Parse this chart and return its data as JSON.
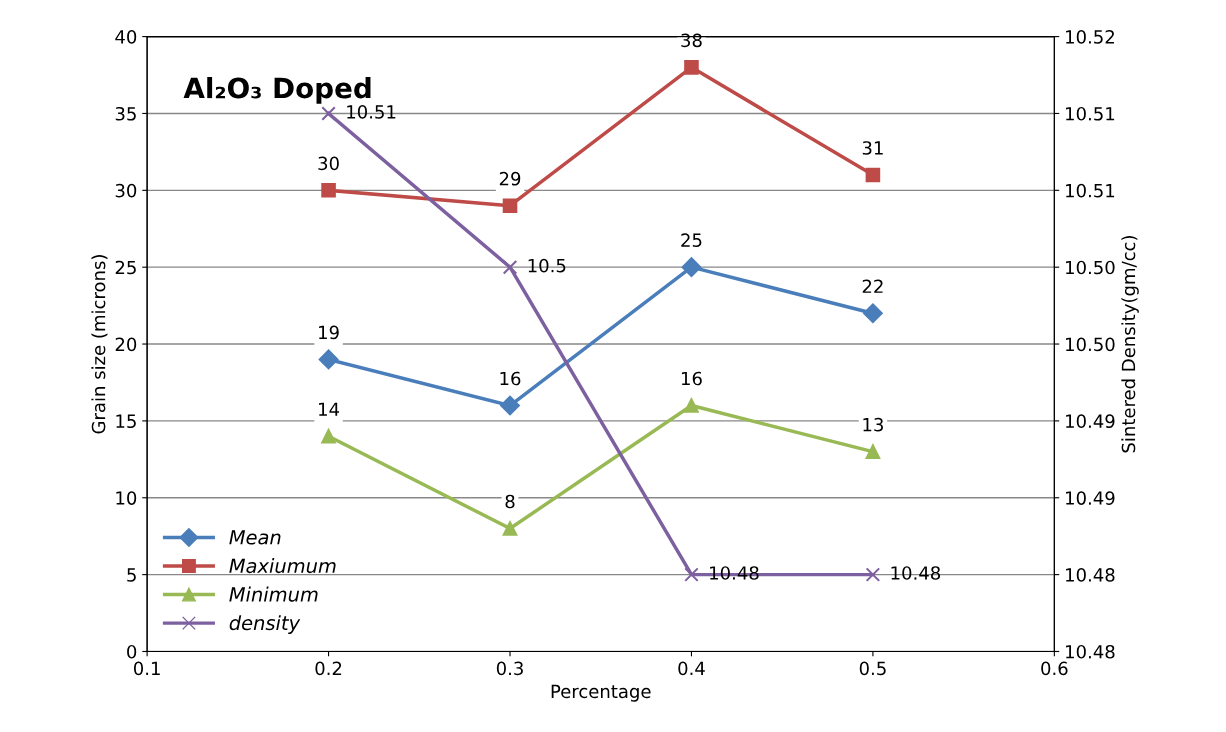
{
  "chart_data": {
    "type": "line",
    "title": "Al₂O₃ Doped",
    "xlabel": "Percentage",
    "ylabel": "Grain size (microns)",
    "y2label": "Sintered Density(gm/cc)",
    "x": [
      0.2,
      0.3,
      0.4,
      0.5
    ],
    "series": [
      {
        "name": "Mean",
        "color": "#4a7ebb",
        "marker": "diamond",
        "values": [
          19,
          16,
          25,
          22
        ]
      },
      {
        "name": "Maxiumum",
        "color": "#be4b48",
        "marker": "square",
        "values": [
          30,
          29,
          38,
          31
        ]
      },
      {
        "name": "Minimum",
        "color": "#98b954",
        "marker": "triangle",
        "values": [
          14,
          8,
          16,
          13
        ]
      },
      {
        "name": "density",
        "color": "#7d60a0",
        "marker": "cross",
        "axis": "y2",
        "values": [
          10.51,
          10.5,
          10.48,
          10.48
        ]
      }
    ],
    "xlim": [
      0.1,
      0.6
    ],
    "xticks": [
      0.1,
      0.2,
      0.3,
      0.4,
      0.5,
      0.6
    ],
    "ylim": [
      0,
      40
    ],
    "yticks": [
      0,
      5,
      10,
      15,
      20,
      25,
      30,
      35,
      40
    ],
    "y2lim": [
      10.475,
      10.515
    ],
    "y2ticks": [
      {
        "value": 10.475,
        "label": "10.48"
      },
      {
        "value": 10.48,
        "label": "10.48"
      },
      {
        "value": 10.485,
        "label": "10.49"
      },
      {
        "value": 10.49,
        "label": "10.49"
      },
      {
        "value": 10.495,
        "label": "10.50"
      },
      {
        "value": 10.5,
        "label": "10.50"
      },
      {
        "value": 10.505,
        "label": "10.51"
      },
      {
        "value": 10.51,
        "label": "10.51"
      },
      {
        "value": 10.515,
        "label": "10.52"
      }
    ],
    "grid": "y",
    "legend": "bottom left",
    "data_labels": true,
    "line_style": "solid"
  }
}
